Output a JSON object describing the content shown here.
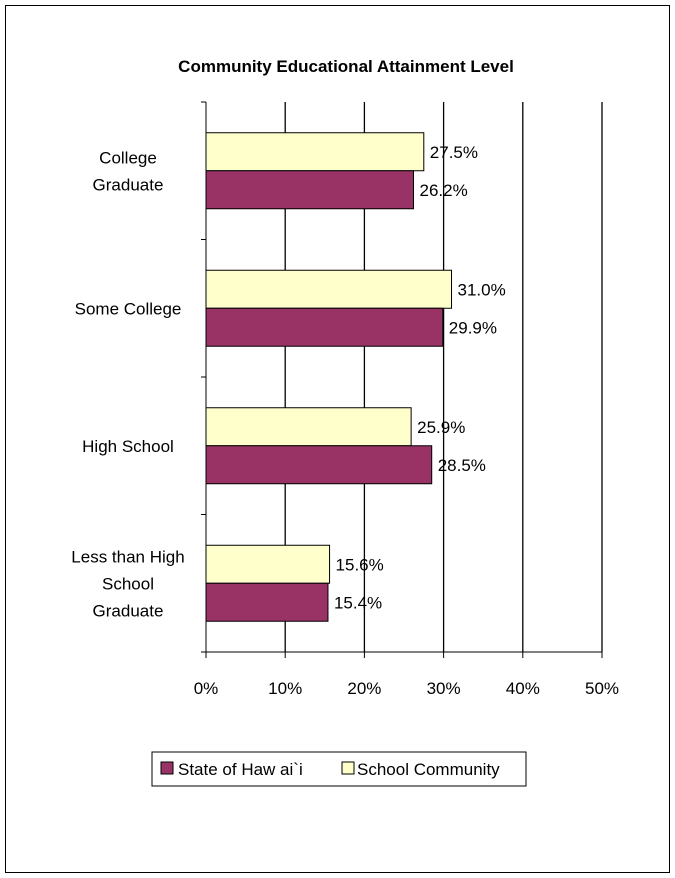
{
  "chart_data": {
    "type": "bar",
    "orientation": "horizontal",
    "title": "Community Educational Attainment Level",
    "categories": [
      [
        "College",
        "Graduate"
      ],
      [
        "Some College"
      ],
      [
        "High School"
      ],
      [
        "Less than High",
        "School",
        "Graduate"
      ]
    ],
    "series": [
      {
        "name": "School Community",
        "color": "#ffffcc",
        "values": [
          27.5,
          31.0,
          25.9,
          15.6
        ],
        "labels": [
          "27.5%",
          "31.0%",
          "25.9%",
          "15.6%"
        ]
      },
      {
        "name": "State of Haw ai`i",
        "color": "#993366",
        "values": [
          26.2,
          29.9,
          28.5,
          15.4
        ],
        "labels": [
          "26.2%",
          "29.9%",
          "28.5%",
          "15.4%"
        ]
      }
    ],
    "xlim": [
      0,
      50
    ],
    "xticks": [
      "0%",
      "10%",
      "20%",
      "30%",
      "40%",
      "50%"
    ],
    "grid": true,
    "legend": {
      "position": "bottom",
      "order": [
        "State of Haw ai`i",
        "School Community"
      ]
    }
  }
}
